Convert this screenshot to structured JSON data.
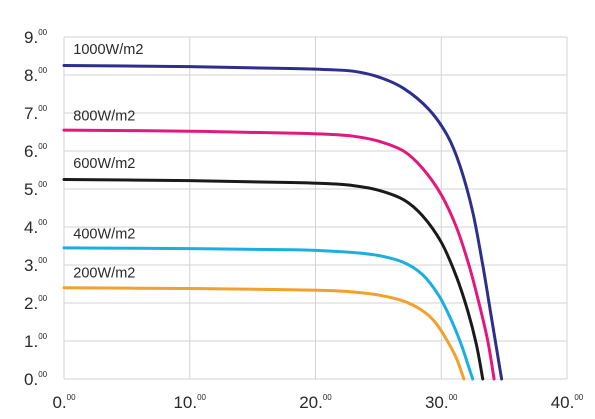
{
  "chart_data": {
    "type": "line",
    "xlabel": "",
    "ylabel": "",
    "xlim": [
      0,
      40
    ],
    "ylim": [
      0,
      9
    ],
    "grid": true,
    "x_ticks": [
      {
        "main": "0.",
        "sup": "00",
        "value": 0
      },
      {
        "main": "10.",
        "sup": "00",
        "value": 10
      },
      {
        "main": "20.",
        "sup": "00",
        "value": 20
      },
      {
        "main": "30.",
        "sup": "00",
        "value": 30
      },
      {
        "main": "40.",
        "sup": "00",
        "value": 40
      }
    ],
    "y_ticks": [
      {
        "main": "0.",
        "sup": "00",
        "value": 0
      },
      {
        "main": "1.",
        "sup": "00",
        "value": 1
      },
      {
        "main": "2.",
        "sup": "00",
        "value": 2
      },
      {
        "main": "3.",
        "sup": "00",
        "value": 3
      },
      {
        "main": "4.",
        "sup": "00",
        "value": 4
      },
      {
        "main": "5.",
        "sup": "00",
        "value": 5
      },
      {
        "main": "6.",
        "sup": "00",
        "value": 6
      },
      {
        "main": "7.",
        "sup": "00",
        "value": 7
      },
      {
        "main": "8.",
        "sup": "00",
        "value": 8
      },
      {
        "main": "9.",
        "sup": "00",
        "value": 9
      }
    ],
    "series": [
      {
        "name": "1000W/m2",
        "color": "#2e2e8c",
        "label_pos": [
          0.5,
          8.55
        ],
        "points": [
          [
            0,
            8.25
          ],
          [
            10,
            8.22
          ],
          [
            18,
            8.17
          ],
          [
            21,
            8.14
          ],
          [
            23,
            8.1
          ],
          [
            25,
            7.95
          ],
          [
            27,
            7.65
          ],
          [
            29,
            7.1
          ],
          [
            30.5,
            6.4
          ],
          [
            31.5,
            5.6
          ],
          [
            32.5,
            4.4
          ],
          [
            33.3,
            3.0
          ],
          [
            33.9,
            1.8
          ],
          [
            34.4,
            0.8
          ],
          [
            34.8,
            0
          ]
        ]
      },
      {
        "name": "800W/m2",
        "color": "#e2197d",
        "label_pos": [
          0.5,
          6.8
        ],
        "points": [
          [
            0,
            6.55
          ],
          [
            10,
            6.52
          ],
          [
            18,
            6.47
          ],
          [
            21,
            6.44
          ],
          [
            23,
            6.39
          ],
          [
            25,
            6.26
          ],
          [
            27,
            6.0
          ],
          [
            28.5,
            5.55
          ],
          [
            30,
            4.85
          ],
          [
            31.2,
            4.0
          ],
          [
            32.2,
            3.0
          ],
          [
            33,
            2.0
          ],
          [
            33.7,
            1.0
          ],
          [
            34.2,
            0
          ]
        ]
      },
      {
        "name": "600W/m2",
        "color": "#1a1a1a",
        "label_pos": [
          0.5,
          5.55
        ],
        "points": [
          [
            0,
            5.25
          ],
          [
            10,
            5.22
          ],
          [
            18,
            5.17
          ],
          [
            21,
            5.14
          ],
          [
            23,
            5.09
          ],
          [
            25,
            4.97
          ],
          [
            27,
            4.72
          ],
          [
            28.5,
            4.3
          ],
          [
            30,
            3.6
          ],
          [
            31.2,
            2.7
          ],
          [
            32.1,
            1.8
          ],
          [
            32.8,
            0.9
          ],
          [
            33.3,
            0
          ]
        ]
      },
      {
        "name": "400W/m2",
        "color": "#1aafe0",
        "label_pos": [
          0.5,
          3.7
        ],
        "points": [
          [
            0,
            3.45
          ],
          [
            10,
            3.43
          ],
          [
            18,
            3.4
          ],
          [
            21,
            3.37
          ],
          [
            23,
            3.33
          ],
          [
            25,
            3.25
          ],
          [
            27,
            3.07
          ],
          [
            28.5,
            2.75
          ],
          [
            29.8,
            2.2
          ],
          [
            30.8,
            1.55
          ],
          [
            31.6,
            0.9
          ],
          [
            32.2,
            0.3
          ],
          [
            32.5,
            0
          ]
        ]
      },
      {
        "name": "200W/m2",
        "color": "#f2a12e",
        "label_pos": [
          0.5,
          2.67
        ],
        "points": [
          [
            0,
            2.4
          ],
          [
            10,
            2.38
          ],
          [
            18,
            2.35
          ],
          [
            21,
            2.33
          ],
          [
            23,
            2.29
          ],
          [
            25,
            2.21
          ],
          [
            27,
            2.05
          ],
          [
            28.5,
            1.8
          ],
          [
            29.5,
            1.5
          ],
          [
            30.4,
            1.05
          ],
          [
            31.2,
            0.55
          ],
          [
            31.8,
            0
          ]
        ]
      }
    ]
  }
}
